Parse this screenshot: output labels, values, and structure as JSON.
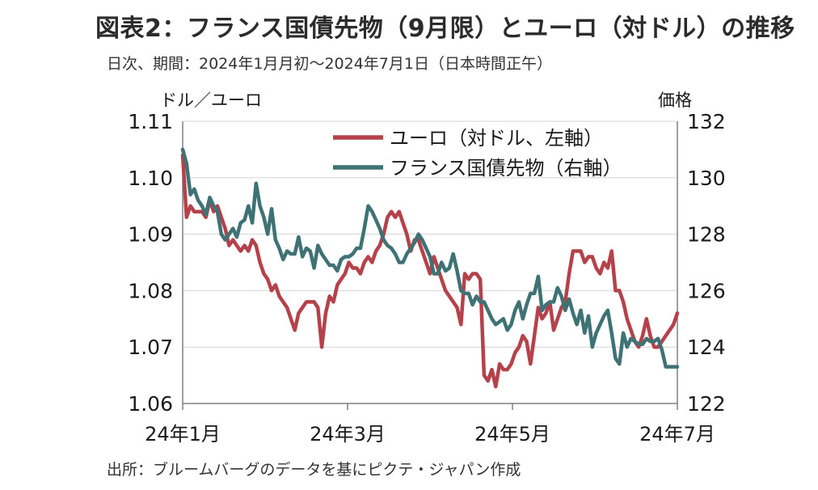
{
  "title": "図表2：フランス国債先物（9月限）とユーロ（対ドル）の推移",
  "subtitle": "日次、期間：2024年1月月初～2024年7月1日（日本時間正午）",
  "source": "出所：ブルームバーグのデータを基にピクテ・ジャパン作成",
  "chart_data": {
    "type": "line",
    "left_axis_label": "ドル／ユーロ",
    "right_axis_label": "価格",
    "x_tick_labels": [
      "24年1月",
      "24年3月",
      "24年5月",
      "24年7月"
    ],
    "left_ticks": [
      "1.11",
      "1.10",
      "1.09",
      "1.08",
      "1.07",
      "1.06"
    ],
    "right_ticks": [
      "132",
      "130",
      "128",
      "126",
      "124",
      "122"
    ],
    "ylim_left": [
      1.06,
      1.11
    ],
    "ylim_right": [
      122,
      132
    ],
    "grid": true,
    "legend_position": "top-right",
    "series": [
      {
        "name": "ユーロ（対ドル、左軸）",
        "axis": "left",
        "color": "#b5424a",
        "values": [
          1.104,
          1.093,
          1.095,
          1.094,
          1.094,
          1.094,
          1.093,
          1.096,
          1.094,
          1.095,
          1.093,
          1.091,
          1.088,
          1.089,
          1.088,
          1.087,
          1.088,
          1.087,
          1.089,
          1.088,
          1.085,
          1.083,
          1.082,
          1.08,
          1.081,
          1.079,
          1.078,
          1.077,
          1.075,
          1.073,
          1.076,
          1.077,
          1.078,
          1.078,
          1.078,
          1.077,
          1.07,
          1.076,
          1.079,
          1.078,
          1.081,
          1.082,
          1.083,
          1.085,
          1.084,
          1.084,
          1.083,
          1.085,
          1.086,
          1.085,
          1.087,
          1.088,
          1.09,
          1.093,
          1.094,
          1.093,
          1.094,
          1.092,
          1.09,
          1.087,
          1.089,
          1.089,
          1.087,
          1.085,
          1.083,
          1.086,
          1.084,
          1.082,
          1.08,
          1.079,
          1.078,
          1.077,
          1.074,
          1.083,
          1.082,
          1.083,
          1.083,
          1.082,
          1.065,
          1.064,
          1.066,
          1.063,
          1.067,
          1.066,
          1.066,
          1.067,
          1.069,
          1.07,
          1.072,
          1.071,
          1.067,
          1.072,
          1.077,
          1.075,
          1.076,
          1.078,
          1.073,
          1.075,
          1.077,
          1.078,
          1.083,
          1.087,
          1.087,
          1.087,
          1.085,
          1.086,
          1.086,
          1.084,
          1.083,
          1.085,
          1.084,
          1.087,
          1.08,
          1.08,
          1.078,
          1.075,
          1.073,
          1.071,
          1.07,
          1.072,
          1.075,
          1.072,
          1.07,
          1.07,
          1.071,
          1.072,
          1.073,
          1.074,
          1.076
        ]
      },
      {
        "name": "フランス国債先物（右軸）",
        "axis": "right",
        "color": "#3e7275",
        "values": [
          131.0,
          130.5,
          129.4,
          129.6,
          129.2,
          129.0,
          128.7,
          129.3,
          129.0,
          128.8,
          128.0,
          127.8,
          128.0,
          128.2,
          127.9,
          128.4,
          128.5,
          129.0,
          128.4,
          129.8,
          129.0,
          128.6,
          128.0,
          128.9,
          127.8,
          127.5,
          127.1,
          127.4,
          127.3,
          127.3,
          127.9,
          127.2,
          127.5,
          127.4,
          126.8,
          127.6,
          127.3,
          127.1,
          126.9,
          126.9,
          126.7,
          127.1,
          127.2,
          127.2,
          127.3,
          127.5,
          127.5,
          128.2,
          129.0,
          128.8,
          128.5,
          128.2,
          127.8,
          127.6,
          127.5,
          127.3,
          127.0,
          127.0,
          127.3,
          127.5,
          127.7,
          128.0,
          127.8,
          127.5,
          127.2,
          126.6,
          126.6,
          127.0,
          126.7,
          126.8,
          127.3,
          126.7,
          126.0,
          125.9,
          125.9,
          125.5,
          125.8,
          125.6,
          125.6,
          125.3,
          125.0,
          124.8,
          124.9,
          125.0,
          124.6,
          124.8,
          125.3,
          125.6,
          125.0,
          125.5,
          125.9,
          125.9,
          126.5,
          125.3,
          125.5,
          125.6,
          125.6,
          126.1,
          125.8,
          125.3,
          125.7,
          125.2,
          124.8,
          125.3,
          124.5,
          125.1,
          124.0,
          124.5,
          124.8,
          125.1,
          125.3,
          124.5,
          123.6,
          123.4,
          124.5,
          124.0,
          124.3,
          124.2,
          124.1,
          124.1,
          124.3,
          124.2,
          124.2,
          124.3,
          123.9,
          123.3,
          123.3,
          123.3,
          123.3
        ]
      }
    ]
  }
}
